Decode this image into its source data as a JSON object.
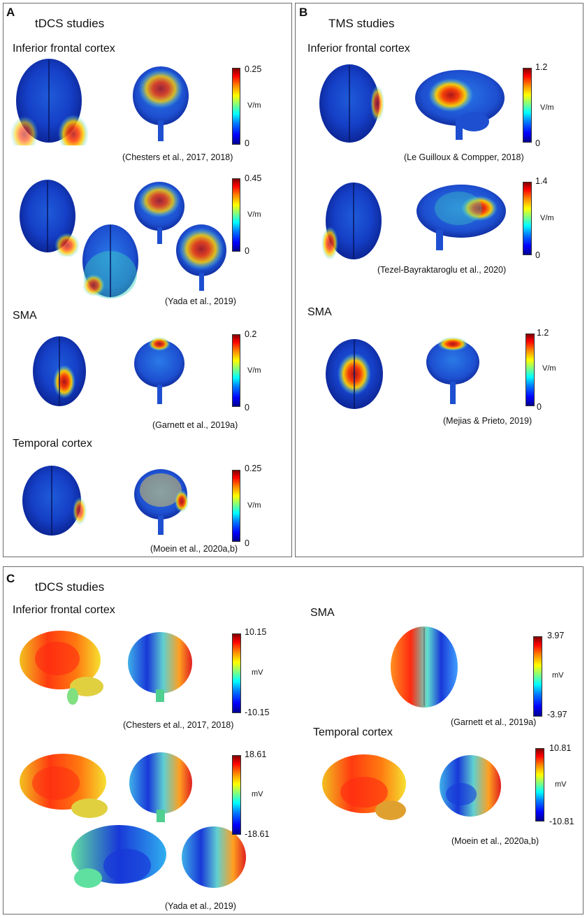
{
  "panel_a": {
    "letter": "A",
    "study_type": "tDCS studies",
    "regions": [
      "Inferior frontal cortex",
      "SMA",
      "Temporal cortex"
    ],
    "rows": [
      {
        "scale_max": "0.25",
        "scale_min": "0",
        "unit": "V/m",
        "citation": "(Chesters et al., 2017, 2018)"
      },
      {
        "scale_max": "0.45",
        "scale_min": "0",
        "unit": "V/m",
        "citation": "(Yada et al., 2019)"
      },
      {
        "scale_max": "0.2",
        "scale_min": "0",
        "unit": "V/m",
        "citation": "(Garnett et al., 2019a)"
      },
      {
        "scale_max": "0.25",
        "scale_min": "0",
        "unit": "V/m",
        "citation": "(Moein et al., 2020a,b)"
      }
    ]
  },
  "panel_b": {
    "letter": "B",
    "study_type": "TMS studies",
    "regions": [
      "Inferior frontal cortex",
      "SMA"
    ],
    "rows": [
      {
        "scale_max": "1.2",
        "scale_min": "0",
        "unit": "V/m",
        "citation": "(Le Guilloux & Compper, 2018)"
      },
      {
        "scale_max": "1.4",
        "scale_min": "0",
        "unit": "V/m",
        "citation": "(Tezel-Bayraktaroglu et al., 2020)"
      },
      {
        "scale_max": "1.2",
        "scale_min": "0",
        "unit": "V/m",
        "citation": "(Mejias & Prieto, 2019)"
      }
    ]
  },
  "panel_c": {
    "letter": "C",
    "study_type": "tDCS studies",
    "regions": [
      "Inferior frontal cortex",
      "SMA",
      "Temporal cortex"
    ],
    "rows": [
      {
        "scale_max": "10.15",
        "scale_min": "-10.15",
        "unit": "mV",
        "citation": "(Chesters et al., 2017, 2018)"
      },
      {
        "scale_max": "18.61",
        "scale_min": "-18.61",
        "unit": "mV",
        "citation": "(Yada et al., 2019)"
      },
      {
        "scale_max": "3.97",
        "scale_min": "-3.97",
        "unit": "mV",
        "citation": "(Garnett et al., 2019a)"
      },
      {
        "scale_max": "10.81",
        "scale_min": "-10.81",
        "unit": "mV",
        "citation": "(Moein et al., 2020a,b)"
      }
    ]
  },
  "colors": {
    "field_low": "#0000ff",
    "field_high": "#800000",
    "potential_low": "#1b3cff",
    "potential_high": "#e82a00"
  }
}
